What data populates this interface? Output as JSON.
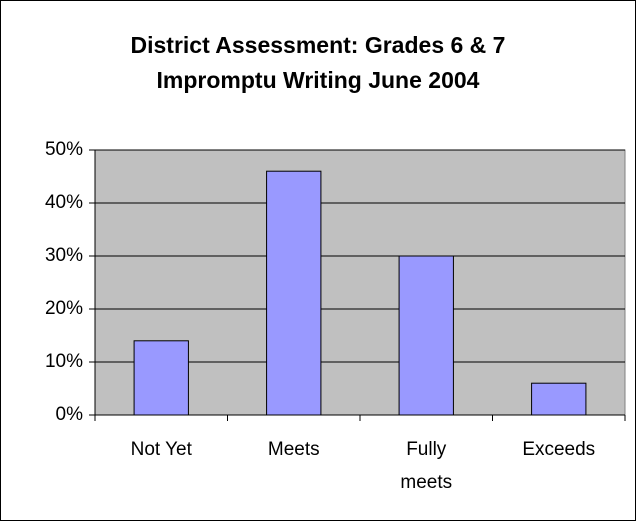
{
  "chart_data": {
    "type": "bar",
    "title": [
      "District Assessment: Grades 6 & 7",
      "Impromptu Writing June 2004"
    ],
    "categories": [
      "Not Yet",
      "Meets",
      "Fully meets",
      "Exceeds"
    ],
    "values": [
      14,
      46,
      30,
      6
    ],
    "color": "#9999ff",
    "ylim": [
      0,
      50
    ],
    "yticks": [
      {
        "value": 0,
        "label": "0%"
      },
      {
        "value": 10,
        "label": "10%"
      },
      {
        "value": 20,
        "label": "20%"
      },
      {
        "value": 30,
        "label": "30%"
      },
      {
        "value": 40,
        "label": "40%"
      },
      {
        "value": 50,
        "label": "50%"
      }
    ],
    "grid": true
  }
}
